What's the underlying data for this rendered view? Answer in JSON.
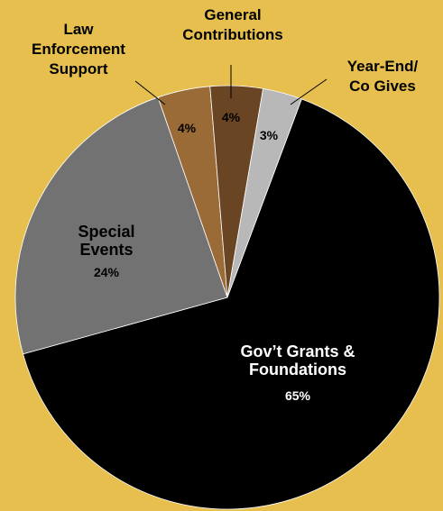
{
  "chart_data": {
    "type": "pie",
    "slices": [
      {
        "label_lines": [
          "Gov’t Grants &",
          "Foundations"
        ],
        "value": 65,
        "value_label": "65%",
        "color": "#000000",
        "text_color": "#FFFFFF"
      },
      {
        "label_lines": [
          "Special",
          "Events"
        ],
        "value": 24,
        "value_label": "24%",
        "color": "#737273",
        "text_color": "#000000"
      },
      {
        "label_lines": [
          "Law",
          "Enforcement",
          "Support"
        ],
        "value": 4,
        "value_label": "4%",
        "color": "#9A6B37",
        "text_color": "#000000"
      },
      {
        "label_lines": [
          "General",
          "Contributions"
        ],
        "value": 4,
        "value_label": "4%",
        "color": "#6A4524",
        "text_color": "#000000"
      },
      {
        "label_lines": [
          "Year-End/",
          "Co Gives"
        ],
        "value": 3,
        "value_label": "3%",
        "color": "#B9B8B9",
        "text_color": "#000000"
      }
    ],
    "background": "#E6BF4E"
  }
}
